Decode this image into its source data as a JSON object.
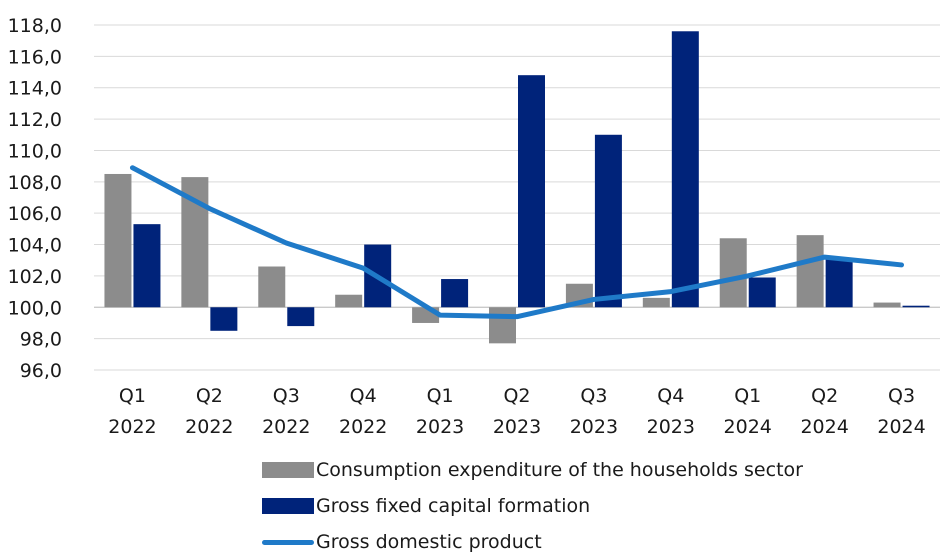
{
  "chart_data": {
    "type": "bar",
    "categories": [
      [
        "Q1",
        "2022"
      ],
      [
        "Q2",
        "2022"
      ],
      [
        "Q3",
        "2022"
      ],
      [
        "Q4",
        "2022"
      ],
      [
        "Q1",
        "2023"
      ],
      [
        "Q2",
        "2023"
      ],
      [
        "Q3",
        "2023"
      ],
      [
        "Q4",
        "2023"
      ],
      [
        "Q1",
        "2024"
      ],
      [
        "Q2",
        "2024"
      ],
      [
        "Q3",
        "2024"
      ]
    ],
    "baseline": 100,
    "ylim": [
      96,
      118
    ],
    "yticks": [
      "96,0",
      "98,0",
      "100,0",
      "102,0",
      "104,0",
      "106,0",
      "108,0",
      "110,0",
      "112,0",
      "114,0",
      "116,0",
      "118,0"
    ],
    "series": [
      {
        "name": "Consumption expenditure of the households sector",
        "kind": "bar",
        "color": "#8c8c8c",
        "values": [
          108.5,
          108.3,
          102.6,
          100.8,
          99.0,
          97.7,
          101.5,
          100.6,
          104.4,
          104.6,
          100.3
        ]
      },
      {
        "name": "Gross fixed capital formation",
        "kind": "bar",
        "color": "#00237a",
        "values": [
          105.3,
          98.5,
          98.8,
          104.0,
          101.8,
          114.8,
          111.0,
          117.6,
          101.9,
          103.1,
          100.1
        ]
      },
      {
        "name": "Gross domestic product",
        "kind": "line",
        "color": "#1f7ac8",
        "values": [
          108.9,
          106.3,
          104.1,
          102.5,
          99.5,
          99.4,
          100.5,
          101.0,
          102.0,
          103.2,
          102.7
        ]
      }
    ],
    "grid": "horizontal",
    "legend_position": "bottom"
  }
}
